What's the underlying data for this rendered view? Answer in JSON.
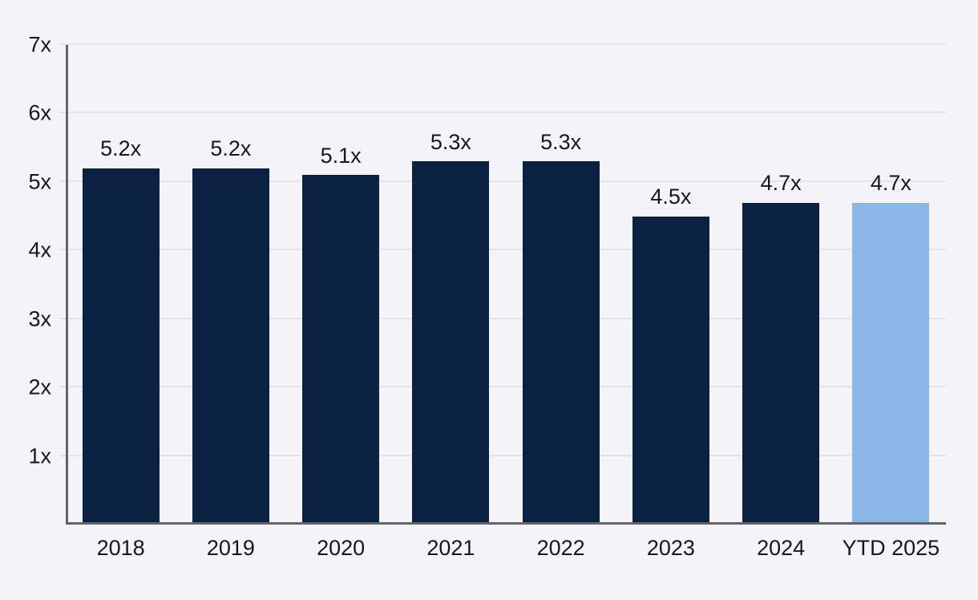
{
  "chart_data": {
    "type": "bar",
    "title": "",
    "xlabel": "",
    "ylabel": "",
    "categories": [
      "2018",
      "2019",
      "2020",
      "2021",
      "2022",
      "2023",
      "2024",
      "YTD 2025"
    ],
    "values": [
      5.2,
      5.2,
      5.1,
      5.3,
      5.3,
      4.5,
      4.7,
      4.7
    ],
    "value_labels": [
      "5.2x",
      "5.2x",
      "5.1x",
      "5.3x",
      "5.3x",
      "4.5x",
      "4.7x",
      "4.7x"
    ],
    "y_tick_labels": [
      "1x",
      "2x",
      "3x",
      "4x",
      "5x",
      "6x",
      "7x"
    ],
    "y_tick_values": [
      1,
      2,
      3,
      4,
      5,
      6,
      7
    ],
    "ylim": [
      0,
      7
    ],
    "grid": "horizontal",
    "legend": "none",
    "highlight_index": 7
  },
  "colors": {
    "background": "#f4f4f8",
    "bar_primary": "#0b2142",
    "bar_highlight": "#8bb7e7",
    "gridline": "#e2e2e8",
    "axis_line": "#636369",
    "text": "#17171a"
  }
}
